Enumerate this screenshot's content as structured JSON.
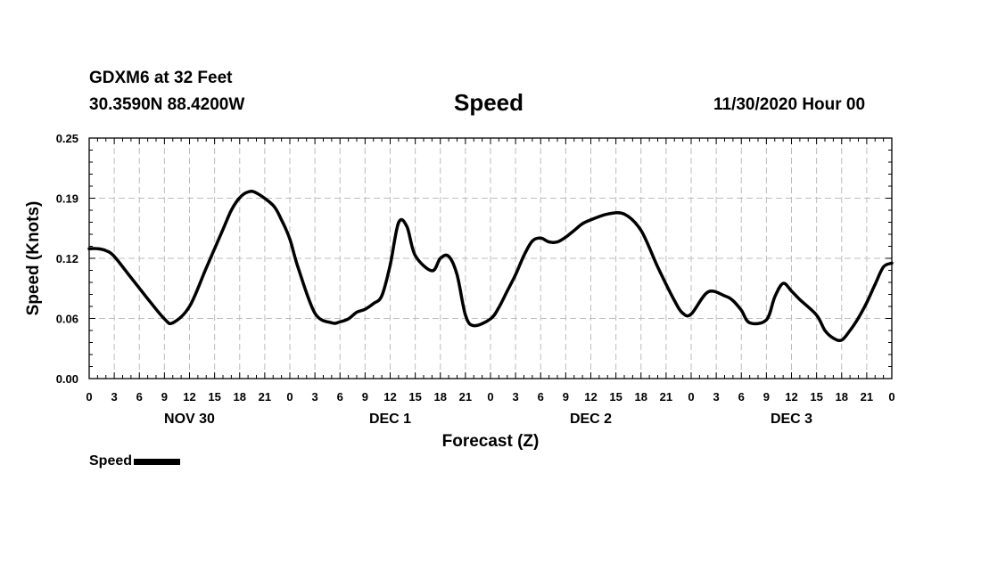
{
  "header": {
    "station": "GDXM6 at 32 Feet",
    "location": "30.3590N 88.4200W",
    "run_time": "11/30/2020 Hour 00"
  },
  "chart_data": {
    "type": "line",
    "title": "Speed",
    "xlabel": "Forecast (Z)",
    "ylabel": "Speed (Knots)",
    "ylim": [
      0,
      0.25
    ],
    "xlim": [
      0,
      96
    ],
    "x_units": "forecast hours from 11/30/2020 00Z",
    "yticks": [
      "0.00",
      "0.06",
      "0.12",
      "0.19",
      "0.25"
    ],
    "ytick_values": [
      0,
      0.0625,
      0.125,
      0.1875,
      0.25
    ],
    "xtick_labels": [
      "0",
      "3",
      "6",
      "9",
      "12",
      "15",
      "18",
      "21",
      "0",
      "3",
      "6",
      "9",
      "12",
      "15",
      "18",
      "21",
      "0",
      "3",
      "6",
      "9",
      "12",
      "15",
      "18",
      "21",
      "0",
      "3",
      "6",
      "9",
      "12",
      "15",
      "18",
      "21",
      "0"
    ],
    "day_labels": [
      {
        "label": "NOV 30",
        "hour": 12
      },
      {
        "label": "DEC 1",
        "hour": 36
      },
      {
        "label": "DEC 2",
        "hour": 60
      },
      {
        "label": "DEC 3",
        "hour": 84
      }
    ],
    "grid": true,
    "series": [
      {
        "name": "Speed",
        "color": "#000000",
        "x": [
          0,
          1,
          2,
          3,
          5,
          7,
          9,
          10,
          12,
          14,
          16,
          17,
          18,
          19,
          20,
          22,
          23,
          24,
          25,
          27,
          29,
          30,
          31,
          32,
          33,
          34,
          35,
          36,
          37,
          38,
          39,
          41,
          42,
          43,
          44,
          45,
          46,
          48,
          49,
          50,
          51,
          52,
          53,
          54,
          55,
          56,
          57,
          58,
          59,
          60,
          62,
          64,
          66,
          68,
          70,
          71,
          72,
          74,
          76,
          77,
          78,
          79,
          81,
          82,
          83,
          84,
          85,
          87,
          88,
          89,
          90,
          91,
          92,
          93,
          94,
          95,
          96
        ],
        "y": [
          0.135,
          0.135,
          0.133,
          0.127,
          0.105,
          0.083,
          0.062,
          0.058,
          0.075,
          0.115,
          0.155,
          0.175,
          0.188,
          0.194,
          0.193,
          0.18,
          0.165,
          0.145,
          0.115,
          0.068,
          0.058,
          0.059,
          0.062,
          0.069,
          0.072,
          0.078,
          0.086,
          0.118,
          0.162,
          0.158,
          0.128,
          0.112,
          0.125,
          0.127,
          0.108,
          0.066,
          0.055,
          0.062,
          0.074,
          0.091,
          0.108,
          0.128,
          0.143,
          0.146,
          0.142,
          0.142,
          0.147,
          0.154,
          0.161,
          0.165,
          0.171,
          0.171,
          0.154,
          0.116,
          0.081,
          0.068,
          0.067,
          0.09,
          0.086,
          0.081,
          0.071,
          0.058,
          0.061,
          0.085,
          0.099,
          0.091,
          0.082,
          0.066,
          0.05,
          0.042,
          0.04,
          0.05,
          0.063,
          0.079,
          0.098,
          0.116,
          0.12
        ]
      }
    ]
  },
  "legend": {
    "label": "Speed"
  }
}
